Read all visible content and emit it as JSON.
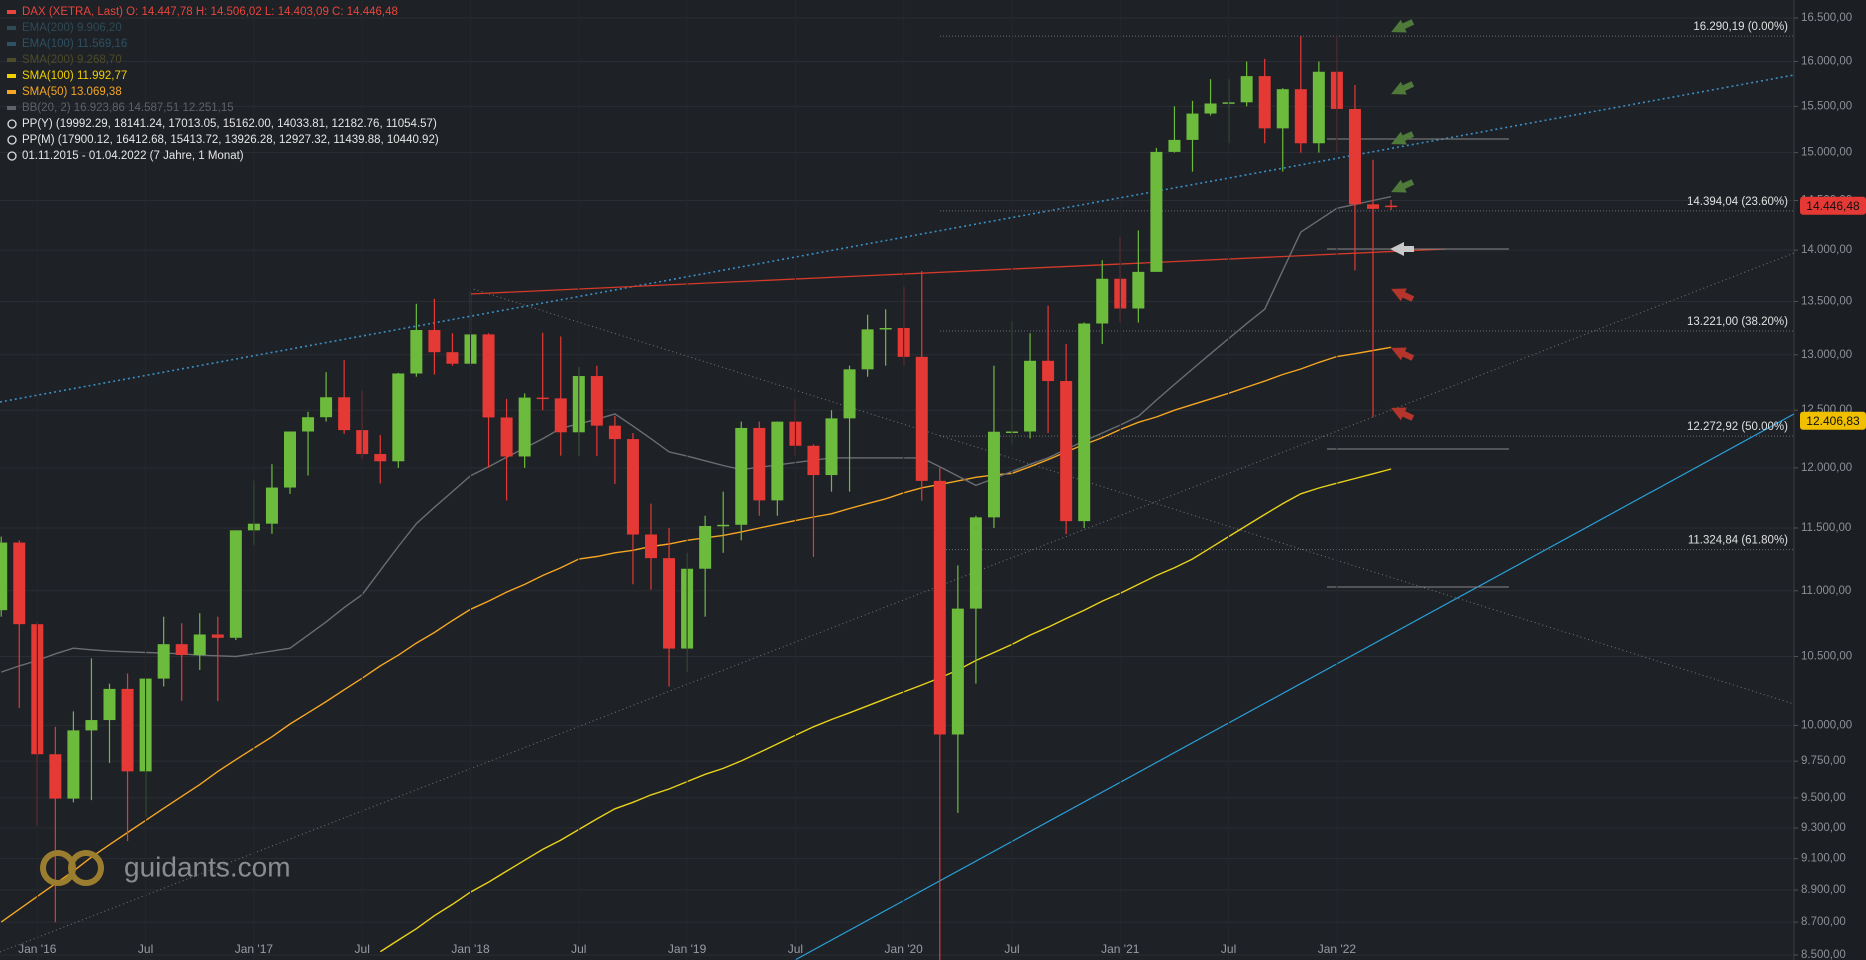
{
  "chart_data": {
    "type": "candlestick",
    "log_scale": true,
    "grid": true,
    "up_color": "#6dbb3c",
    "down_color": "#e53935",
    "header": [
      {
        "text": "DAX (XETRA, Last)  O: 14.447,78  H: 14.506,02  L: 14.403,09  C: 14.446,48",
        "color": "#e8453c"
      },
      {
        "text": "EMA(200)  9.906,20",
        "color": "#2e4a55"
      },
      {
        "text": "EMA(100)  11.569,16",
        "color": "#2e5163"
      },
      {
        "text": "SMA(200)  9.268,70",
        "color": "#4d4b2a"
      },
      {
        "text": "SMA(100)  11.992,77",
        "color": "#f0d000"
      },
      {
        "text": "SMA(50)  13.069,38",
        "color": "#f5a623"
      },
      {
        "text": "BB(20, 2)  16.923,86  14.587,51  12.251,15",
        "color": "#5f6267"
      },
      {
        "text": "PP(Y)  (19992.29, 18141.24, 17013.05, 15162.00, 14033.81, 12182.76, 11054.57)",
        "color": "#e6e6e6"
      },
      {
        "text": "PP(M)  (17900.12, 16412.68, 15413.72, 13926.28, 12927.32, 11439.88, 10440.92)",
        "color": "#e6e6e6"
      },
      {
        "text": "01.11.2015 - 01.04.2022  (7 Jahre, 1 Monat)",
        "color": "#e6e6e6"
      }
    ],
    "categories": [
      null,
      null,
      "Jan '16",
      null,
      null,
      null,
      null,
      null,
      "Jul",
      null,
      null,
      null,
      null,
      null,
      "Jan '17",
      null,
      null,
      null,
      null,
      null,
      "Jul",
      null,
      null,
      null,
      null,
      null,
      "Jan '18",
      null,
      null,
      null,
      null,
      null,
      "Jul",
      null,
      null,
      null,
      null,
      null,
      "Jan '19",
      null,
      null,
      null,
      null,
      null,
      "Jul",
      null,
      null,
      null,
      null,
      null,
      "Jan '20",
      null,
      null,
      null,
      null,
      null,
      "Jul",
      null,
      null,
      null,
      null,
      null,
      "Jan '21",
      null,
      null,
      null,
      null,
      null,
      "Jul",
      null,
      null,
      null,
      null,
      null,
      "Jan '22",
      null,
      null,
      null
    ],
    "open": [
      10850,
      11382,
      10743,
      9798,
      9495,
      9965,
      10038,
      10262,
      9680,
      10337,
      10592,
      10511,
      10665,
      10640,
      11481,
      11535,
      11834,
      12313,
      12438,
      12615,
      12325,
      12118,
      12056,
      12829,
      13230,
      13024,
      12918,
      13189,
      12436,
      12097,
      12612,
      12605,
      12306,
      12806,
      12364,
      12247,
      11447,
      11257,
      10559,
      11173,
      11516,
      11526,
      12344,
      11727,
      12399,
      12189,
      11939,
      12428,
      12867,
      13236,
      13249,
      12981,
      11890,
      9936,
      10862,
      11587,
      12311,
      12313,
      12945,
      12761,
      11556,
      13291,
      13719,
      13433,
      13786,
      15008,
      15136,
      15421,
      15531,
      15544,
      15835,
      15260,
      15689,
      15100,
      15884,
      15471,
      14461,
      14447.78
    ],
    "high": [
      11430,
      11400,
      10760,
      9990,
      10100,
      10486,
      10300,
      10374,
      10340,
      10800,
      10750,
      10827,
      10800,
      11481,
      11893,
      12031,
      12313,
      12486,
      12841,
      12951,
      12676,
      12283,
      12835,
      13478,
      13526,
      13200,
      13597,
      13200,
      12600,
      12650,
      13204,
      13170,
      12887,
      12900,
      12450,
      12300,
      11700,
      11500,
      11300,
      11600,
      11800,
      12400,
      12400,
      12400,
      12600,
      12200,
      12500,
      12900,
      13374,
      13425,
      13640,
      13795,
      12000,
      11200,
      11600,
      12900,
      13313,
      13200,
      13460,
      13100,
      13300,
      13900,
      14131,
      14197,
      15050,
      15500,
      15560,
      15800,
      15800,
      16000,
      16030,
      15700,
      16290,
      16000,
      16285,
      15736,
      14925,
      14506.02
    ],
    "low": [
      10800,
      10124,
      9314,
      8699,
      9470,
      9485,
      9738,
      9214,
      9373,
      10280,
      10175,
      10400,
      10174,
      10623,
      11364,
      11453,
      11781,
      11935,
      12400,
      12292,
      12073,
      11868,
      12000,
      12800,
      12820,
      12900,
      12900,
      12003,
      11727,
      12000,
      12500,
      12104,
      12100,
      12100,
      11865,
      11051,
      11009,
      10279,
      10386,
      10800,
      11300,
      11400,
      11600,
      11600,
      12100,
      11266,
      11800,
      11800,
      12800,
      12900,
      12900,
      11725,
      8256,
      9400,
      10300,
      11500,
      12200,
      12253,
      12300,
      11450,
      11500,
      13100,
      13300,
      13300,
      13800,
      15000,
      14800,
      15400,
      15100,
      15500,
      15100,
      14800,
      15000,
      15000,
      15000,
      13800,
      12439,
      14403.09
    ],
    "close": [
      11382,
      10743,
      9798,
      9495,
      9965,
      10038,
      10262,
      9680,
      10337,
      10592,
      10511,
      10665,
      10640,
      11481,
      11535,
      11834,
      12313,
      12438,
      12615,
      12325,
      12118,
      12056,
      12829,
      13230,
      13024,
      12918,
      13189,
      12436,
      12097,
      12612,
      12605,
      12306,
      12806,
      12364,
      12247,
      11447,
      11257,
      10559,
      11173,
      11516,
      11526,
      12344,
      11727,
      12399,
      12189,
      11939,
      12428,
      12867,
      13236,
      13249,
      12981,
      11890,
      9936,
      10862,
      11587,
      12311,
      12313,
      12945,
      12761,
      11556,
      13291,
      13719,
      13433,
      13786,
      15008,
      15136,
      15421,
      15531,
      15544,
      15835,
      15260,
      15689,
      15100,
      15884,
      15471,
      14461,
      14415,
      14446.48
    ],
    "overlays": [
      {
        "color": "#f5a623",
        "values": [
          8700,
          8780,
          8860,
          8940,
          9020,
          9110,
          9190,
          9270,
          9350,
          9430,
          9510,
          9590,
          9680,
          9760,
          9840,
          9920,
          10010,
          10090,
          10170,
          10255,
          10340,
          10430,
          10510,
          10600,
          10680,
          10770,
          10857,
          10920,
          10990,
          11050,
          11120,
          11180,
          11250,
          11270,
          11300,
          11320,
          11350,
          11370,
          11400,
          11420,
          11440,
          11468,
          11500,
          11530,
          11560,
          11590,
          11616,
          11660,
          11700,
          11740,
          11790,
          11832,
          11860,
          11890,
          11920,
          11940,
          11953,
          12010,
          12070,
          12136,
          12200,
          12260,
          12330,
          12393,
          12440,
          12500,
          12550,
          12600,
          12650,
          12706,
          12760,
          12820,
          12870,
          12930,
          12984,
          13010,
          13040,
          13069
        ]
      },
      {
        "color": "#e8d21a",
        "values": [
          null,
          null,
          null,
          null,
          null,
          null,
          null,
          null,
          null,
          null,
          null,
          null,
          null,
          null,
          null,
          null,
          null,
          null,
          null,
          null,
          null,
          8520,
          8590,
          8660,
          8740,
          8810,
          8887,
          8950,
          9020,
          9090,
          9160,
          9220,
          9290,
          9360,
          9427,
          9470,
          9520,
          9560,
          9610,
          9660,
          9700,
          9752,
          9810,
          9870,
          9930,
          9990,
          10042,
          10090,
          10140,
          10190,
          10240,
          10290,
          10342,
          10400,
          10470,
          10530,
          10590,
          10660,
          10720,
          10786,
          10850,
          10920,
          10980,
          11050,
          11120,
          11180,
          11250,
          11340,
          11430,
          11520,
          11610,
          11700,
          11782,
          11830,
          11870,
          11910,
          11950,
          11990
        ]
      },
      {
        "color": "#6a6d72",
        "values": [
          10385,
          10430,
          10470,
          10520,
          10562,
          10550,
          10540,
          10535,
          10530,
          10525,
          10520,
          10510,
          10505,
          10500,
          10520,
          10540,
          10562,
          10660,
          10760,
          10870,
          10970,
          11160,
          11350,
          11536,
          11670,
          11800,
          11934,
          12010,
          12090,
          12170,
          12250,
          12341,
          12380,
          12420,
          12467,
          12360,
          12250,
          12136,
          12100,
          12060,
          12020,
          11985,
          12005,
          12025,
          12045,
          12065,
          12085,
          12085,
          12085,
          12085,
          12085,
          12085,
          12010,
          11930,
          11852,
          11910,
          11970,
          12030,
          12085,
          12160,
          12230,
          12300,
          12370,
          12446,
          12590,
          12730,
          12870,
          13010,
          13150,
          13290,
          13426,
          13800,
          14180,
          14300,
          14420,
          14460,
          14500,
          14540
        ]
      }
    ],
    "ylim": [
      8500,
      16500
    ],
    "yticks": [
      {
        "value": 16500,
        "label": "16.500,00"
      },
      {
        "value": 16000,
        "label": "16.000,00"
      },
      {
        "value": 15500,
        "label": "15.500,00"
      },
      {
        "value": 15000,
        "label": "15.000,00"
      },
      {
        "value": 14500,
        "label": "14.500,00"
      },
      {
        "value": 14000,
        "label": "14.000,00"
      },
      {
        "value": 13500,
        "label": "13.500,00"
      },
      {
        "value": 13000,
        "label": "13.000,00"
      },
      {
        "value": 12500,
        "label": "12.500,00"
      },
      {
        "value": 12000,
        "label": "12.000,00"
      },
      {
        "value": 11500,
        "label": "11.500,00"
      },
      {
        "value": 11000,
        "label": "11.000,00"
      },
      {
        "value": 10500,
        "label": "10.500,00"
      },
      {
        "value": 10000,
        "label": "10.000,00"
      },
      {
        "value": 9750,
        "label": "9.750,00"
      },
      {
        "value": 9500,
        "label": "9.500,00"
      },
      {
        "value": 9300,
        "label": "9.300,00"
      },
      {
        "value": 9100,
        "label": "9.100,00"
      },
      {
        "value": 8900,
        "label": "8.900,00"
      },
      {
        "value": 8700,
        "label": "8.700,00"
      },
      {
        "value": 8500,
        "label": "8.500,00"
      }
    ],
    "fib_levels": [
      {
        "value": 16290.19,
        "label": "16.290,19 (0.00%)"
      },
      {
        "value": 14394.04,
        "label": "14.394,04 (23.60%)"
      },
      {
        "value": 13221.0,
        "label": "13.221,00 (38.20%)"
      },
      {
        "value": 12272.92,
        "label": "12.272,92 (50.00%)"
      },
      {
        "value": 11324.84,
        "label": "11.324,84 (61.80%)"
      }
    ],
    "price_tags": [
      {
        "value": 14446.48,
        "label": "14.446,48",
        "color": "#e53935"
      },
      {
        "value": 12406.83,
        "label": "12.406,83",
        "color": "#f0c000"
      }
    ],
    "watermark": "guidants.com"
  }
}
